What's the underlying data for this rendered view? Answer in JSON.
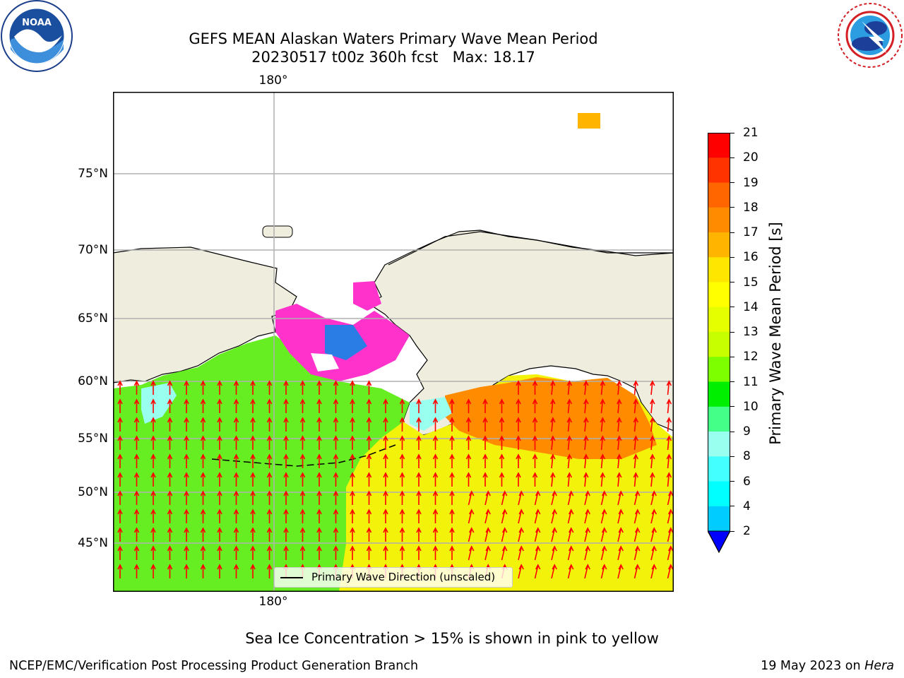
{
  "header": {
    "title_line1": "GEFS MEAN Alaskan Waters Primary Wave Mean Period",
    "title_line2": "20230517 t00z 360h fcst   Max: 18.17"
  },
  "logos": {
    "left": {
      "icon": "noaa-logo-icon",
      "text": "NOAA"
    },
    "right": {
      "icon": "nws-logo-icon"
    }
  },
  "map": {
    "lat_labels": [
      "75°N",
      "70°N",
      "65°N",
      "60°N",
      "55°N",
      "50°N",
      "45°N"
    ],
    "lon_label_top": "180°",
    "lon_label_bottom": "180°",
    "legend_label": "Primary Wave Direction (unscaled)",
    "colors": {
      "land": "#efedde",
      "ocean_green": "#66ee22",
      "ocean_yellow": "#f2f20a",
      "ocean_orange": "#ff8c00",
      "ice_pink": "#ff33cc",
      "arrow": "#ff0000",
      "grid": "#b0b0b0"
    }
  },
  "colorbar": {
    "label": "Primary Wave Mean Period [s]",
    "ticks": [
      "21",
      "20",
      "19",
      "18",
      "17",
      "16",
      "15",
      "14",
      "13",
      "12",
      "11",
      "10",
      "9",
      "8",
      "6",
      "4",
      "2"
    ],
    "colors": [
      "#ff0000",
      "#ff3300",
      "#ff6600",
      "#ff8c00",
      "#ffb400",
      "#ffe600",
      "#ffff00",
      "#e6ff00",
      "#c8ff00",
      "#7dff00",
      "#00ee00",
      "#44ff88",
      "#99ffee",
      "#44ffff",
      "#00ffff",
      "#00ccff",
      "#0077ff"
    ],
    "extend_color": "#0000ff"
  },
  "footer": {
    "note": "Sea Ice Concentration > 15% is shown in pink to yellow",
    "left": "NCEP/EMC/Verification Post Processing Product Generation Branch",
    "right_date": "19 May 2023 on ",
    "right_machine": "Hera"
  }
}
